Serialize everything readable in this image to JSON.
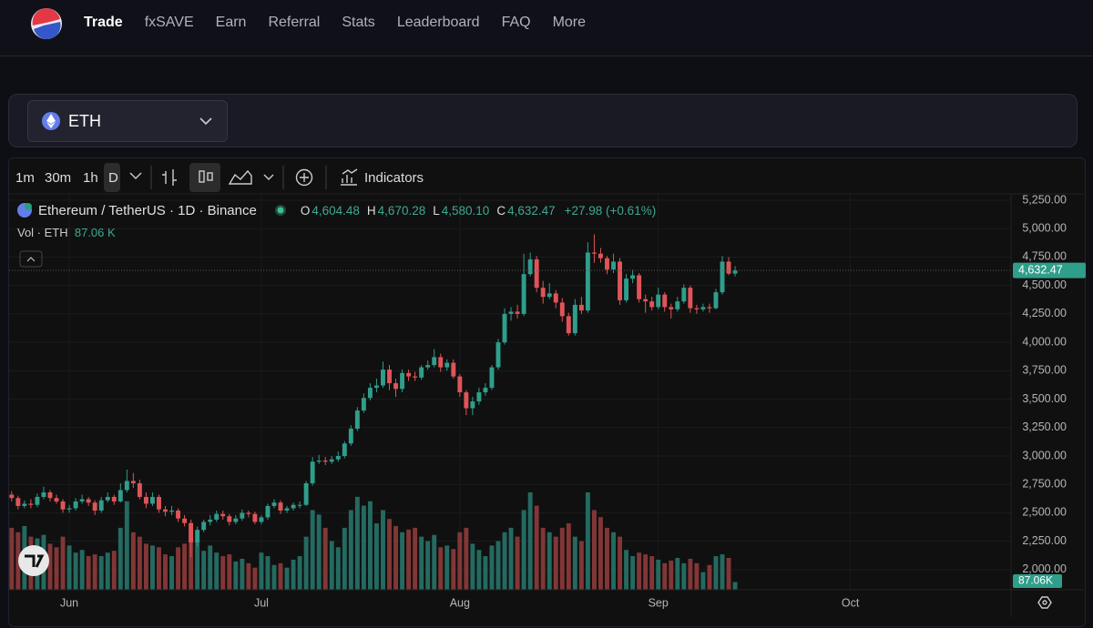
{
  "nav": {
    "items": [
      "Trade",
      "fxSAVE",
      "Earn",
      "Referral",
      "Stats",
      "Leaderboard",
      "FAQ",
      "More"
    ]
  },
  "selector": {
    "asset": "ETH"
  },
  "toolbar": {
    "intervals": [
      "1m",
      "30m",
      "1h",
      "D"
    ],
    "indicators": "Indicators"
  },
  "chart_data": {
    "type": "candlestick",
    "symbol": "Ethereum / TetherUS · 1D · Binance",
    "ohlc_letters": [
      "O",
      "H",
      "L",
      "C"
    ],
    "ohlc_labels": [
      "4,604.48",
      "4,670.28",
      "4,580.10",
      "4,632.47"
    ],
    "change_label": "+27.98 (+0.61%)",
    "volume_title": "Vol · ETH",
    "volume_label": "87.06 K",
    "volume_axis_label": "87.06K",
    "last_price_label": "4,632.47",
    "up_color": "#2f9e8b",
    "down_color": "#e05458",
    "volume_up_color": "#246a61",
    "volume_down_color": "#823636",
    "grid": true,
    "xlim": [
      0.6,
      157.1
    ],
    "xticks": [
      {
        "value": 10,
        "label": "Jun"
      },
      {
        "value": 40,
        "label": "Jul"
      },
      {
        "value": 71,
        "label": "Aug"
      },
      {
        "value": 102,
        "label": "Sep"
      },
      {
        "value": 132,
        "label": "Oct"
      }
    ],
    "ylim": [
      1823,
      5306
    ],
    "yticks": [
      {
        "value": 5250,
        "label": "5,250.00"
      },
      {
        "value": 5000,
        "label": "5,000.00"
      },
      {
        "value": 4750,
        "label": "4,750.00"
      },
      {
        "value": 4500,
        "label": "4,500.00"
      },
      {
        "value": 4250,
        "label": "4,250.00"
      },
      {
        "value": 4000,
        "label": "4,000.00"
      },
      {
        "value": 3750,
        "label": "3,750.00"
      },
      {
        "value": 3500,
        "label": "3,500.00"
      },
      {
        "value": 3250,
        "label": "3,250.00"
      },
      {
        "value": 3000,
        "label": "3,000.00"
      },
      {
        "value": 2750,
        "label": "2,750.00"
      },
      {
        "value": 2500,
        "label": "2,500.00"
      },
      {
        "value": 2250,
        "label": "2,250.00"
      },
      {
        "value": 2000,
        "label": "2,000.00"
      }
    ],
    "candles": [
      [
        2700,
        2740,
        2620,
        2660
      ],
      [
        2660,
        2690,
        2600,
        2630
      ],
      [
        2630,
        2650,
        2530,
        2560
      ],
      [
        2560,
        2610,
        2540,
        2580
      ],
      [
        2580,
        2620,
        2540,
        2570
      ],
      [
        2570,
        2670,
        2550,
        2640
      ],
      [
        2640,
        2730,
        2620,
        2680
      ],
      [
        2680,
        2700,
        2600,
        2630
      ],
      [
        2630,
        2660,
        2580,
        2600
      ],
      [
        2600,
        2620,
        2500,
        2530
      ],
      [
        2530,
        2570,
        2500,
        2540
      ],
      [
        2540,
        2630,
        2520,
        2600
      ],
      [
        2600,
        2660,
        2580,
        2620
      ],
      [
        2620,
        2640,
        2560,
        2590
      ],
      [
        2590,
        2610,
        2480,
        2520
      ],
      [
        2520,
        2640,
        2500,
        2610
      ],
      [
        2610,
        2680,
        2590,
        2640
      ],
      [
        2640,
        2660,
        2570,
        2600
      ],
      [
        2600,
        2760,
        2590,
        2700
      ],
      [
        2700,
        2880,
        2680,
        2780
      ],
      [
        2780,
        2850,
        2720,
        2760
      ],
      [
        2760,
        2790,
        2620,
        2640
      ],
      [
        2640,
        2680,
        2540,
        2580
      ],
      [
        2580,
        2680,
        2560,
        2640
      ],
      [
        2640,
        2660,
        2500,
        2530
      ],
      [
        2530,
        2560,
        2470,
        2510
      ],
      [
        2510,
        2560,
        2480,
        2520
      ],
      [
        2520,
        2540,
        2420,
        2450
      ],
      [
        2450,
        2480,
        2380,
        2410
      ],
      [
        2410,
        2440,
        2110,
        2240
      ],
      [
        2240,
        2380,
        2200,
        2350
      ],
      [
        2350,
        2440,
        2330,
        2420
      ],
      [
        2420,
        2480,
        2390,
        2440
      ],
      [
        2440,
        2520,
        2420,
        2490
      ],
      [
        2490,
        2520,
        2440,
        2470
      ],
      [
        2470,
        2490,
        2390,
        2420
      ],
      [
        2420,
        2480,
        2400,
        2450
      ],
      [
        2450,
        2530,
        2430,
        2500
      ],
      [
        2500,
        2520,
        2460,
        2490
      ],
      [
        2490,
        2510,
        2400,
        2420
      ],
      [
        2420,
        2480,
        2400,
        2460
      ],
      [
        2460,
        2580,
        2440,
        2560
      ],
      [
        2560,
        2620,
        2540,
        2590
      ],
      [
        2590,
        2610,
        2490,
        2520
      ],
      [
        2520,
        2560,
        2500,
        2540
      ],
      [
        2540,
        2590,
        2520,
        2570
      ],
      [
        2570,
        2600,
        2540,
        2570
      ],
      [
        2570,
        2780,
        2560,
        2760
      ],
      [
        2760,
        2990,
        2740,
        2950
      ],
      [
        2950,
        3010,
        2930,
        2960
      ],
      [
        2960,
        2990,
        2920,
        2950
      ],
      [
        2950,
        3000,
        2930,
        2970
      ],
      [
        2970,
        3040,
        2950,
        3000
      ],
      [
        3000,
        3130,
        2980,
        3110
      ],
      [
        3110,
        3270,
        3090,
        3240
      ],
      [
        3240,
        3430,
        3220,
        3400
      ],
      [
        3400,
        3550,
        3380,
        3510
      ],
      [
        3510,
        3640,
        3490,
        3600
      ],
      [
        3600,
        3680,
        3560,
        3620
      ],
      [
        3620,
        3830,
        3600,
        3760
      ],
      [
        3760,
        3800,
        3580,
        3640
      ],
      [
        3640,
        3680,
        3520,
        3590
      ],
      [
        3590,
        3760,
        3560,
        3730
      ],
      [
        3730,
        3760,
        3660,
        3700
      ],
      [
        3700,
        3740,
        3660,
        3690
      ],
      [
        3690,
        3800,
        3670,
        3780
      ],
      [
        3780,
        3840,
        3760,
        3800
      ],
      [
        3800,
        3940,
        3780,
        3870
      ],
      [
        3870,
        3900,
        3740,
        3780
      ],
      [
        3780,
        3850,
        3750,
        3820
      ],
      [
        3820,
        3850,
        3680,
        3700
      ],
      [
        3700,
        3720,
        3520,
        3560
      ],
      [
        3560,
        3580,
        3360,
        3420
      ],
      [
        3420,
        3520,
        3360,
        3480
      ],
      [
        3480,
        3600,
        3450,
        3560
      ],
      [
        3560,
        3640,
        3530,
        3600
      ],
      [
        3600,
        3800,
        3580,
        3780
      ],
      [
        3780,
        4030,
        3760,
        4000
      ],
      [
        4000,
        4300,
        3980,
        4250
      ],
      [
        4250,
        4310,
        4190,
        4270
      ],
      [
        4270,
        4330,
        4210,
        4250
      ],
      [
        4250,
        4780,
        4230,
        4600
      ],
      [
        4600,
        4790,
        4580,
        4730
      ],
      [
        4730,
        4760,
        4440,
        4480
      ],
      [
        4480,
        4540,
        4340,
        4400
      ],
      [
        4400,
        4520,
        4380,
        4430
      ],
      [
        4430,
        4460,
        4300,
        4350
      ],
      [
        4350,
        4390,
        4180,
        4230
      ],
      [
        4230,
        4260,
        4060,
        4080
      ],
      [
        4080,
        4380,
        4060,
        4330
      ],
      [
        4330,
        4400,
        4250,
        4280
      ],
      [
        4280,
        4880,
        4260,
        4790
      ],
      [
        4790,
        4950,
        4700,
        4780
      ],
      [
        4780,
        4830,
        4700,
        4740
      ],
      [
        4740,
        4760,
        4600,
        4640
      ],
      [
        4640,
        4780,
        4610,
        4710
      ],
      [
        4710,
        4740,
        4330,
        4370
      ],
      [
        4370,
        4600,
        4350,
        4560
      ],
      [
        4560,
        4640,
        4520,
        4590
      ],
      [
        4590,
        4610,
        4350,
        4380
      ],
      [
        4380,
        4420,
        4260,
        4360
      ],
      [
        4360,
        4400,
        4280,
        4310
      ],
      [
        4310,
        4480,
        4290,
        4420
      ],
      [
        4420,
        4440,
        4270,
        4310
      ],
      [
        4310,
        4340,
        4210,
        4290
      ],
      [
        4290,
        4400,
        4270,
        4360
      ],
      [
        4360,
        4510,
        4340,
        4480
      ],
      [
        4480,
        4500,
        4260,
        4300
      ],
      [
        4300,
        4330,
        4250,
        4290
      ],
      [
        4290,
        4340,
        4270,
        4310
      ],
      [
        4310,
        4340,
        4260,
        4300
      ],
      [
        4300,
        4470,
        4290,
        4440
      ],
      [
        4440,
        4760,
        4420,
        4710
      ],
      [
        4710,
        4750,
        4590,
        4604.49
      ],
      [
        4604.48,
        4670.28,
        4580.1,
        4632.47
      ]
    ],
    "volume": [
      800,
      700,
      650,
      720,
      600,
      580,
      620,
      520,
      480,
      600,
      500,
      420,
      450,
      380,
      400,
      380,
      420,
      440,
      700,
      1000,
      650,
      600,
      520,
      500,
      480,
      400,
      380,
      480,
      520,
      700,
      560,
      440,
      500,
      420,
      380,
      400,
      320,
      350,
      300,
      250,
      420,
      380,
      280,
      300,
      250,
      340,
      380,
      600,
      900,
      850,
      700,
      550,
      480,
      700,
      900,
      1050,
      950,
      1000,
      750,
      900,
      800,
      720,
      650,
      680,
      700,
      600,
      550,
      620,
      480,
      500,
      460,
      650,
      700,
      520,
      450,
      380,
      500,
      550,
      650,
      700,
      600,
      900,
      1100,
      950,
      700,
      650,
      600,
      700,
      750,
      600,
      550,
      1100,
      900,
      820,
      700,
      650,
      600,
      450,
      380,
      420,
      400,
      380,
      340,
      300,
      330,
      360,
      300,
      350,
      300,
      200,
      280,
      380,
      400,
      360,
      87.06
    ]
  }
}
